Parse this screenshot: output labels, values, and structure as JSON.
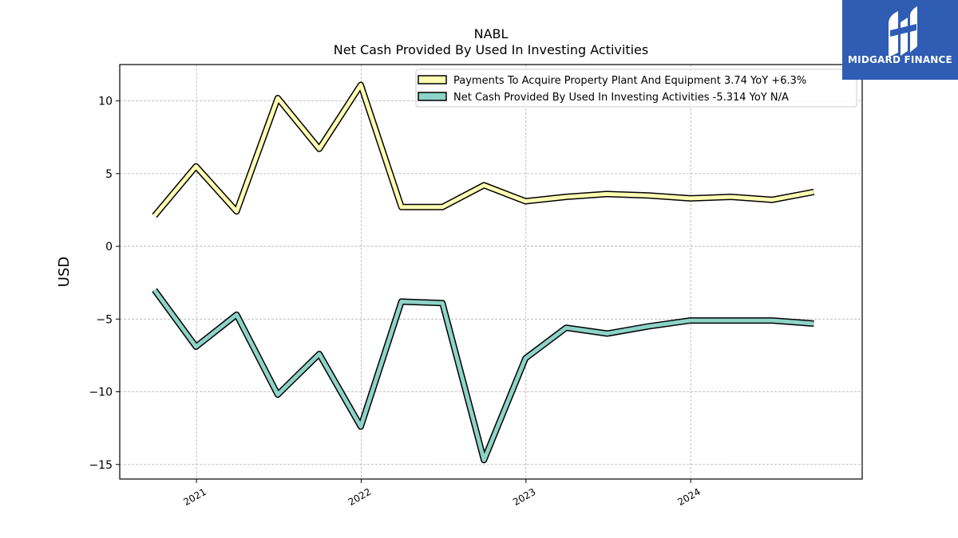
{
  "chart_data": {
    "type": "line",
    "title": "NABL",
    "subtitle": "Net Cash Provided By Used In Investing Activities",
    "ylabel": "USD",
    "xlabel": "",
    "ylim": [
      -16,
      12.5
    ],
    "xlim": [
      "2020-07-15",
      "2025-01-15"
    ],
    "yticks": [
      -15,
      -10,
      -5,
      0,
      5,
      10
    ],
    "ytick_labels": [
      "−15",
      "−10",
      "−5",
      "0",
      "5",
      "10"
    ],
    "xticks": [
      "2021-01-01",
      "2022-01-01",
      "2023-01-01",
      "2024-01-01"
    ],
    "xtick_labels": [
      "2021",
      "2022",
      "2023",
      "2024"
    ],
    "grid": true,
    "legend_placement": "top-right",
    "x": [
      "2020-09-30",
      "2020-12-31",
      "2021-03-31",
      "2021-06-30",
      "2021-09-30",
      "2021-12-31",
      "2022-03-31",
      "2022-06-30",
      "2022-09-30",
      "2022-12-31",
      "2023-03-31",
      "2023-06-30",
      "2023-09-30",
      "2023-12-31",
      "2024-03-31",
      "2024-06-30",
      "2024-09-30"
    ],
    "series": [
      {
        "name": "Payments To Acquire Property Plant And Equipment",
        "legend_label": "Payments To Acquire Property Plant And Equipment  3.74 YoY +6.3%",
        "color": "#ffffb3",
        "values": [
          2.1,
          5.5,
          2.4,
          10.2,
          6.7,
          11.1,
          2.7,
          2.7,
          4.2,
          3.1,
          3.4,
          3.6,
          3.5,
          3.3,
          3.4,
          3.2,
          3.74
        ]
      },
      {
        "name": "Net Cash Provided By Used In Investing Activities",
        "legend_label": "Net Cash Provided By Used In Investing Activities  -5.314 YoY N/A",
        "color": "#8dd3c7",
        "values": [
          -3.0,
          -6.9,
          -4.7,
          -10.2,
          -7.4,
          -12.4,
          -3.8,
          -3.9,
          -14.7,
          -7.7,
          -5.6,
          -6.0,
          -5.5,
          -5.1,
          -5.1,
          -5.1,
          -5.314
        ]
      }
    ]
  },
  "logo": {
    "text": "MIDGARD FINANCE",
    "background": "#2f5db3"
  }
}
